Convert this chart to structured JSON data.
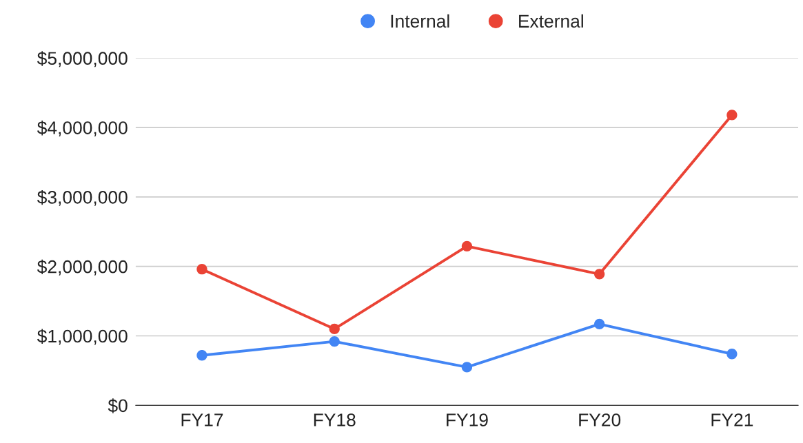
{
  "chart_data": {
    "type": "line",
    "categories": [
      "FY17",
      "FY18",
      "FY19",
      "FY20",
      "FY21"
    ],
    "series": [
      {
        "name": "Internal",
        "color": "#4285f4",
        "values": [
          720000,
          920000,
          550000,
          1170000,
          740000
        ]
      },
      {
        "name": "External",
        "color": "#ea4335",
        "values": [
          1960000,
          1100000,
          2290000,
          1890000,
          4180000
        ]
      }
    ],
    "ylim": [
      0,
      5000000
    ],
    "yticks": [
      {
        "value": 0,
        "label": "$0"
      },
      {
        "value": 1000000,
        "label": "$1,000,000"
      },
      {
        "value": 2000000,
        "label": "$2,000,000"
      },
      {
        "value": 3000000,
        "label": "$3,000,000"
      },
      {
        "value": 4000000,
        "label": "$4,000,000"
      },
      {
        "value": 5000000,
        "label": "$5,000,000"
      }
    ],
    "grid": "y",
    "legend": "top",
    "marker": "circle",
    "line_style": "solid"
  }
}
